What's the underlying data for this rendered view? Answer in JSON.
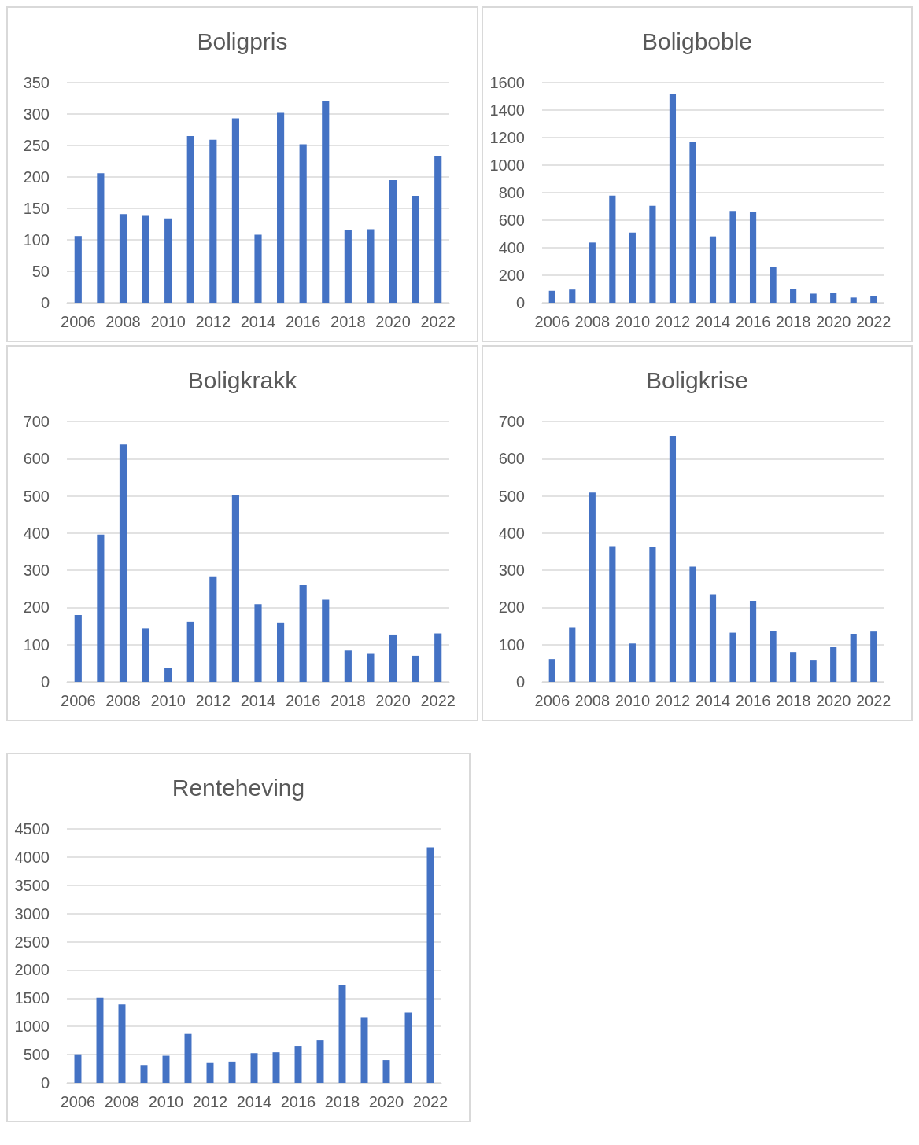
{
  "chart_data": [
    {
      "type": "bar",
      "title": "Boligpris",
      "categories": [
        "2006",
        null,
        "2008",
        null,
        "2010",
        null,
        "2012",
        null,
        "2014",
        null,
        "2016",
        null,
        "2018",
        null,
        "2020",
        null,
        "2022"
      ],
      "values": [
        106,
        206,
        141,
        138,
        134,
        265,
        259,
        293,
        108,
        302,
        252,
        320,
        116,
        117,
        195,
        170,
        233
      ],
      "color": "#4472c4",
      "ylim": [
        0,
        350
      ],
      "yticks": [
        0,
        50,
        100,
        150,
        200,
        250,
        300,
        350
      ],
      "grid": "y"
    },
    {
      "type": "bar",
      "title": "Boligboble",
      "categories": [
        "2006",
        null,
        "2008",
        null,
        "2010",
        null,
        "2012",
        null,
        "2014",
        null,
        "2016",
        null,
        "2018",
        null,
        "2020",
        null,
        "2022"
      ],
      "values": [
        87,
        96,
        438,
        778,
        510,
        705,
        1515,
        1169,
        482,
        667,
        659,
        259,
        100,
        66,
        74,
        38,
        51
      ],
      "color": "#4472c4",
      "ylim": [
        0,
        1600
      ],
      "yticks": [
        0,
        200,
        400,
        600,
        800,
        1000,
        1200,
        1400,
        1600
      ],
      "grid": "y"
    },
    {
      "type": "bar",
      "title": "Boligkrakk",
      "categories": [
        "2006",
        null,
        "2008",
        null,
        "2010",
        null,
        "2012",
        null,
        "2014",
        null,
        "2016",
        null,
        "2018",
        null,
        "2020",
        null,
        "2022"
      ],
      "values": [
        180,
        396,
        638,
        143,
        38,
        161,
        282,
        501,
        209,
        159,
        260,
        221,
        84,
        75,
        127,
        70,
        130
      ],
      "color": "#4472c4",
      "ylim": [
        0,
        700
      ],
      "yticks": [
        0,
        100,
        200,
        300,
        400,
        500,
        600,
        700
      ],
      "grid": "y"
    },
    {
      "type": "bar",
      "title": "Boligkrise",
      "categories": [
        "2006",
        null,
        "2008",
        null,
        "2010",
        null,
        "2012",
        null,
        "2014",
        null,
        "2016",
        null,
        "2018",
        null,
        "2020",
        null,
        "2022"
      ],
      "values": [
        61,
        147,
        509,
        365,
        103,
        362,
        662,
        310,
        236,
        132,
        218,
        136,
        80,
        59,
        93,
        129,
        135
      ],
      "color": "#4472c4",
      "ylim": [
        0,
        700
      ],
      "yticks": [
        0,
        100,
        200,
        300,
        400,
        500,
        600,
        700
      ],
      "grid": "y"
    },
    {
      "type": "bar",
      "title": "Renteheving",
      "categories": [
        "2006",
        null,
        "2008",
        null,
        "2010",
        null,
        "2012",
        null,
        "2014",
        null,
        "2016",
        null,
        "2018",
        null,
        "2020",
        null,
        "2022"
      ],
      "values": [
        506,
        1507,
        1389,
        317,
        480,
        868,
        352,
        378,
        526,
        541,
        654,
        751,
        1731,
        1164,
        403,
        1246,
        4173
      ],
      "color": "#4472c4",
      "ylim": [
        0,
        4500
      ],
      "yticks": [
        0,
        500,
        1000,
        1500,
        2000,
        2500,
        3000,
        3500,
        4000,
        4500
      ],
      "grid": "y"
    }
  ]
}
